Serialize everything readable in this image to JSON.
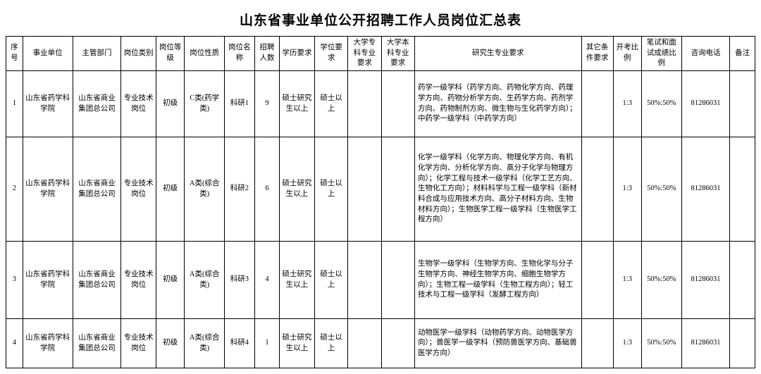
{
  "title": "山东省事业单位公开招聘工作人员岗位汇总表",
  "headers": {
    "seq": "序号",
    "unit": "事业单位",
    "dept": "主管部门",
    "ptype": "岗位类别",
    "plev": "岗位等级",
    "pnat": "岗位性质",
    "pname": "岗位名称",
    "pnum": "招聘人数",
    "edu": "学历要求",
    "deg": "学位要求",
    "spec1": "大学专科专业要求",
    "spec2": "大学本科专业要求",
    "grad": "研究生专业要求",
    "other": "其它条件要求",
    "ratio": "开考比例",
    "score": "笔试和面试成绩比例",
    "phone": "咨询电话",
    "note": "备注"
  },
  "rows": [
    {
      "seq": "1",
      "unit": "山东省药学科学院",
      "dept": "山东省商业集团总公司",
      "ptype": "专业技术岗位",
      "plev": "初级",
      "pnat": "C类(药学类)",
      "pname": "科研1",
      "pnum": "9",
      "edu": "硕士研究生以上",
      "deg": "硕士以上",
      "spec1": "",
      "spec2": "",
      "grad": "药学一级学科（药学方向、药物化学方向、药理学方向、药物分析学方向、生药学方向、药剂学方向、药物制剂方向、微生物与生化药学方向）；中药学一级学科（中药学方向）",
      "other": "",
      "ratio": "1:3",
      "score": "50%:50%",
      "phone": "81286031",
      "note": ""
    },
    {
      "seq": "2",
      "unit": "山东省药学科学院",
      "dept": "山东省商业集团总公司",
      "ptype": "专业技术岗位",
      "plev": "初级",
      "pnat": "A类(综合类)",
      "pname": "科研2",
      "pnum": "6",
      "edu": "硕士研究生以上",
      "deg": "硕士以上",
      "spec1": "",
      "spec2": "",
      "grad": "化学一级学科（化学方向、物理化学方向、有机化学方向、分析化学方向、高分子化学与物理方向）；化学工程与技术一级学科（化学工艺方向、生物化工方向）；材料科学与工程一级学科（新材料合成与应用技术方向、高分子材料方向、生物材料方向）；生物医学工程一级学科（生物医学工程方向）",
      "other": "",
      "ratio": "1:3",
      "score": "50%:50%",
      "phone": "81286031",
      "note": ""
    },
    {
      "seq": "3",
      "unit": "山东省药学科学院",
      "dept": "山东省商业集团总公司",
      "ptype": "专业技术岗位",
      "plev": "初级",
      "pnat": "A类(综合类)",
      "pname": "科研3",
      "pnum": "4",
      "edu": "硕士研究生以上",
      "deg": "硕士以上",
      "spec1": "",
      "spec2": "",
      "grad": "生物学一级学科（生物学方向、生物化学与分子生物学方向、神经生物学方向、细胞生物学方向）；生物工程一级学科（生物工程方向）；轻工技术与工程一级学科（发酵工程方向）",
      "other": "",
      "ratio": "1:3",
      "score": "50%:50%",
      "phone": "81286031",
      "note": ""
    },
    {
      "seq": "4",
      "unit": "山东省药学科学院",
      "dept": "山东省商业集团总公司",
      "ptype": "专业技术岗位",
      "plev": "初级",
      "pnat": "A类(综合类)",
      "pname": "科研4",
      "pnum": "1",
      "edu": "硕士研究生以上",
      "deg": "硕士以上",
      "spec1": "",
      "spec2": "",
      "grad": "动物医学一级学科（动物药学方向、动物医学方向）；兽医学一级学科（预防兽医学方向、基础兽医学方向）",
      "other": "",
      "ratio": "1:3",
      "score": "50%:50%",
      "phone": "81286031",
      "note": ""
    }
  ]
}
